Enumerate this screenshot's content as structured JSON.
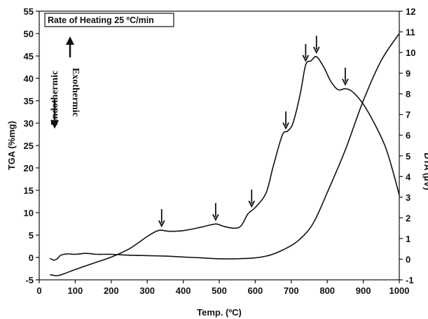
{
  "chart_data": {
    "type": "line",
    "annotation": "Rate of Heating 25 ºC/min",
    "xlabel": "Temp. (ºC)",
    "ylabel_left": "TGA (%mg)",
    "ylabel_right": "DTA (µV)",
    "endothermic_label": "Endothermic",
    "exothermic_label": "Exothermic",
    "xlim": [
      0,
      1000
    ],
    "ylim_left": [
      -5,
      55
    ],
    "ylim_right": [
      -1,
      12
    ],
    "x_ticks": [
      0,
      100,
      200,
      300,
      400,
      500,
      600,
      700,
      800,
      900,
      1000
    ],
    "y_left_ticks": [
      -5,
      0,
      5,
      10,
      15,
      20,
      25,
      30,
      35,
      40,
      45,
      50,
      55
    ],
    "y_right_ticks": [
      -1,
      0,
      1,
      2,
      3,
      4,
      5,
      6,
      7,
      8,
      9,
      10,
      11,
      12
    ],
    "grid": false,
    "series": [
      {
        "axis": "left",
        "points": [
          [
            30,
            -0.2
          ],
          [
            40,
            -0.6
          ],
          [
            50,
            -0.3
          ],
          [
            60,
            0.5
          ],
          [
            80,
            0.8
          ],
          [
            100,
            0.7
          ],
          [
            130,
            0.9
          ],
          [
            160,
            0.7
          ],
          [
            200,
            0.7
          ],
          [
            250,
            0.5
          ],
          [
            300,
            0.4
          ],
          [
            350,
            0.3
          ],
          [
            400,
            0.1
          ],
          [
            450,
            -0.1
          ],
          [
            500,
            -0.3
          ],
          [
            550,
            -0.3
          ],
          [
            600,
            -0.1
          ],
          [
            640,
            0.5
          ],
          [
            680,
            1.8
          ],
          [
            720,
            3.8
          ],
          [
            760,
            7.5
          ],
          [
            800,
            14.5
          ],
          [
            850,
            24
          ],
          [
            900,
            35
          ],
          [
            950,
            44
          ],
          [
            1000,
            50
          ]
        ]
      },
      {
        "axis": "right",
        "points": [
          [
            30,
            -0.75
          ],
          [
            50,
            -0.8
          ],
          [
            70,
            -0.7
          ],
          [
            100,
            -0.5
          ],
          [
            150,
            -0.2
          ],
          [
            200,
            0.1
          ],
          [
            250,
            0.5
          ],
          [
            300,
            1.1
          ],
          [
            325,
            1.35
          ],
          [
            340,
            1.4
          ],
          [
            360,
            1.35
          ],
          [
            400,
            1.38
          ],
          [
            450,
            1.55
          ],
          [
            490,
            1.7
          ],
          [
            510,
            1.6
          ],
          [
            540,
            1.5
          ],
          [
            560,
            1.6
          ],
          [
            580,
            2.2
          ],
          [
            600,
            2.5
          ],
          [
            630,
            3.2
          ],
          [
            650,
            4.5
          ],
          [
            675,
            6
          ],
          [
            690,
            6.2
          ],
          [
            705,
            6.6
          ],
          [
            725,
            8
          ],
          [
            740,
            9.4
          ],
          [
            755,
            9.6
          ],
          [
            770,
            9.8
          ],
          [
            790,
            9.3
          ],
          [
            810,
            8.6
          ],
          [
            830,
            8.2
          ],
          [
            850,
            8.25
          ],
          [
            870,
            8.1
          ],
          [
            900,
            7.5
          ],
          [
            930,
            6.6
          ],
          [
            960,
            5.5
          ],
          [
            980,
            4.4
          ],
          [
            1000,
            3.1
          ]
        ]
      }
    ],
    "arrows_at_x": [
      340,
      490,
      590,
      685,
      740,
      770,
      850
    ]
  }
}
